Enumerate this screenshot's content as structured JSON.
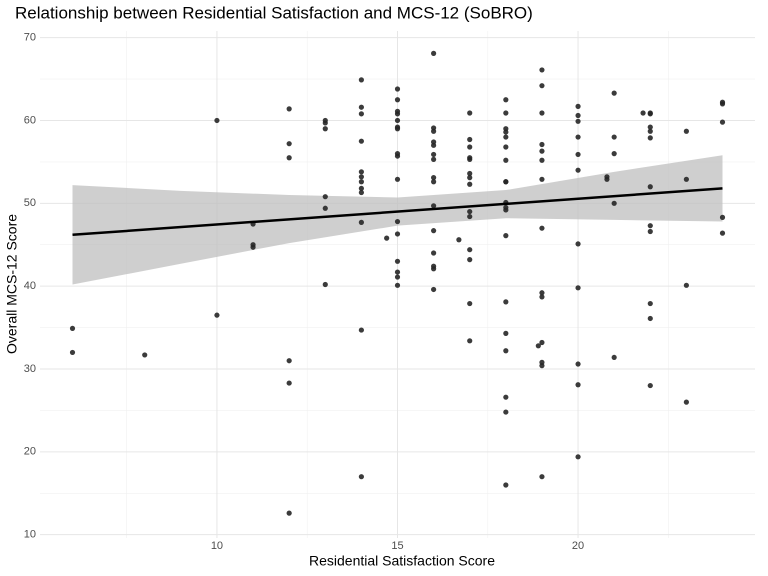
{
  "chart_data": {
    "type": "scatter",
    "title": "Relationship between Residential Satisfaction and MCS-12 (SoBRO)",
    "x_label": "Residential Satisfaction Score",
    "y_label": "Overall MCS-12 Score",
    "xlim": [
      5.1,
      24.9
    ],
    "xticks": [
      10,
      15,
      20
    ],
    "ylim": [
      9.6,
      70.8
    ],
    "yticks": [
      10,
      20,
      30,
      40,
      50,
      60,
      70
    ],
    "x_minor_grid": [
      7.5,
      12.5,
      17.5,
      22.5
    ],
    "y_minor_grid": [
      15,
      25,
      35,
      45,
      55,
      65
    ],
    "grid": true,
    "color": "#262626",
    "x": [
      6,
      6,
      8,
      10,
      10,
      11,
      11,
      11,
      12,
      12,
      12,
      12,
      12,
      12,
      13,
      13,
      13,
      13,
      13,
      13,
      14,
      14,
      14,
      14,
      14,
      14,
      14,
      14,
      14,
      14,
      14,
      14,
      14.7,
      15,
      15,
      15,
      15,
      15,
      15,
      15,
      15,
      15,
      15,
      15,
      15,
      15,
      15,
      15,
      15,
      16,
      16,
      16,
      16,
      16,
      16,
      16,
      16,
      16,
      16,
      16,
      16,
      16,
      16,
      16,
      16.7,
      17,
      17,
      17,
      17,
      17,
      17,
      17,
      17,
      17,
      17,
      17,
      17,
      17,
      17,
      18,
      18,
      18,
      18,
      18,
      18,
      18,
      18,
      18,
      18,
      18,
      18,
      18,
      18,
      18,
      18,
      18,
      18,
      18,
      18.9,
      19,
      19,
      19,
      19,
      19,
      19,
      19,
      19,
      19,
      19,
      19,
      19,
      19,
      19,
      20,
      20,
      20,
      20,
      20,
      20,
      20,
      20,
      20,
      20,
      20,
      20.8,
      20.8,
      21,
      21,
      21,
      21,
      21,
      22,
      22,
      22,
      22,
      22,
      22,
      22,
      22,
      22,
      22,
      22,
      21.8,
      23,
      23,
      23,
      23,
      24,
      24,
      24,
      24,
      24
    ],
    "y": [
      34.9,
      32.0,
      31.7,
      60.0,
      36.5,
      47.5,
      45.0,
      44.7,
      61.4,
      57.2,
      55.5,
      31.0,
      28.3,
      12.6,
      60.0,
      59.7,
      59.0,
      50.8,
      49.4,
      40.2,
      64.9,
      61.6,
      60.8,
      57.5,
      53.8,
      53.2,
      52.6,
      51.8,
      51.3,
      47.7,
      34.7,
      17.0,
      45.8,
      63.8,
      62.5,
      61.1,
      60.8,
      60.0,
      59.2,
      59.0,
      56.0,
      55.7,
      52.9,
      47.8,
      46.3,
      43.0,
      41.7,
      41.1,
      40.1,
      68.1,
      59.1,
      58.7,
      57.4,
      57.0,
      55.9,
      55.3,
      53.1,
      52.6,
      49.7,
      46.7,
      44.0,
      42.4,
      42.1,
      39.6,
      45.6,
      60.9,
      57.7,
      56.8,
      55.5,
      55.3,
      53.6,
      53.1,
      52.3,
      49.0,
      48.4,
      44.4,
      43.2,
      37.9,
      33.4,
      62.5,
      60.9,
      59.0,
      58.6,
      58.0,
      56.8,
      55.2,
      52.6,
      52.6,
      50.1,
      49.5,
      49.2,
      46.1,
      38.1,
      34.3,
      32.2,
      26.6,
      24.8,
      16.0,
      32.8,
      66.1,
      64.2,
      60.9,
      57.1,
      56.3,
      55.2,
      52.9,
      47.0,
      39.2,
      38.7,
      33.2,
      30.8,
      30.4,
      17.0,
      61.7,
      60.6,
      59.9,
      58.0,
      55.9,
      54.0,
      45.1,
      39.8,
      30.6,
      28.1,
      19.4,
      53.2,
      52.9,
      63.3,
      58.0,
      56.0,
      50.0,
      31.4,
      60.9,
      60.8,
      59.2,
      58.7,
      57.9,
      52.0,
      47.3,
      46.6,
      37.9,
      36.1,
      28.0,
      60.9,
      58.7,
      52.9,
      40.1,
      26.0,
      62.2,
      62.0,
      59.8,
      48.3,
      46.4
    ],
    "trend": {
      "color": "#000000",
      "x": [
        6,
        24
      ],
      "y": [
        46.2,
        51.8
      ]
    },
    "band": {
      "color": "#bfbfbf",
      "x": [
        6,
        9,
        12,
        15,
        18,
        21,
        24
      ],
      "lower": [
        40.2,
        42.7,
        45.2,
        47.3,
        48.2,
        48.0,
        47.8
      ],
      "upper": [
        52.2,
        51.5,
        51.0,
        50.7,
        51.6,
        53.8,
        55.8
      ]
    }
  }
}
